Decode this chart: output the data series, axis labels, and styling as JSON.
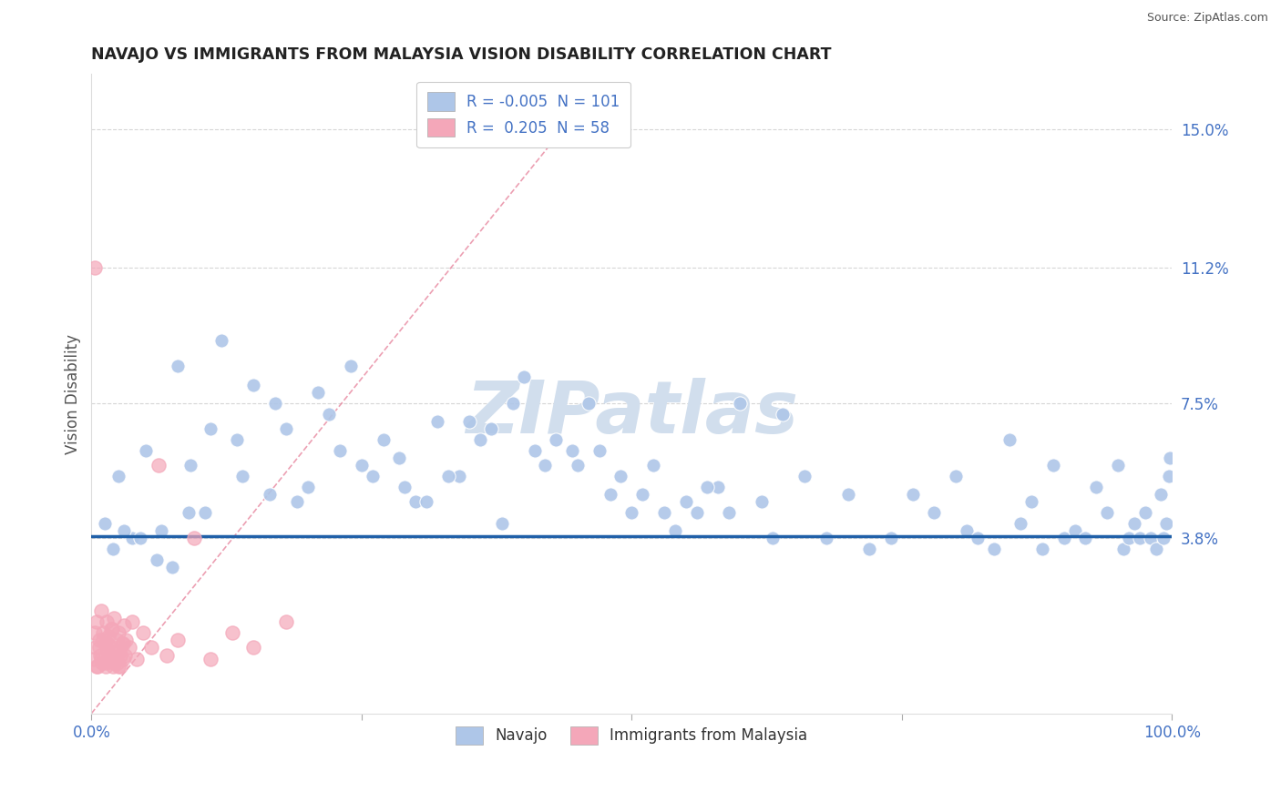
{
  "title": "NAVAJO VS IMMIGRANTS FROM MALAYSIA VISION DISABILITY CORRELATION CHART",
  "source": "Source: ZipAtlas.com",
  "ylabel": "Vision Disability",
  "xlim": [
    0,
    100
  ],
  "ylim": [
    -1.0,
    16.5
  ],
  "yticks": [
    3.8,
    7.5,
    11.2,
    15.0
  ],
  "navajo_R": "-0.005",
  "navajo_N": "101",
  "malaysia_R": "0.205",
  "malaysia_N": "58",
  "navajo_color": "#aec6e8",
  "malaysia_color": "#f4a7b9",
  "navajo_trend_color": "#2060a8",
  "malaysia_trend_color": "#e06080",
  "watermark": "ZIPatlas",
  "watermark_color_r": 0.82,
  "watermark_color_g": 0.87,
  "watermark_color_b": 0.93,
  "background_color": "#ffffff",
  "grid_color": "#cccccc",
  "axis_label_color": "#4472c4",
  "title_color": "#222222",
  "navajo_x": [
    1.2,
    2.5,
    3.8,
    5.0,
    6.5,
    8.0,
    9.2,
    10.5,
    12.0,
    13.5,
    15.0,
    16.5,
    18.0,
    20.0,
    22.0,
    24.0,
    26.0,
    28.5,
    30.0,
    32.0,
    34.0,
    36.0,
    38.0,
    40.0,
    42.0,
    44.5,
    46.0,
    48.0,
    50.0,
    52.0,
    54.0,
    56.0,
    58.0,
    60.0,
    62.0,
    64.0,
    66.0,
    68.0,
    70.0,
    72.0,
    74.0,
    76.0,
    78.0,
    80.0,
    81.0,
    82.0,
    83.5,
    85.0,
    86.0,
    87.0,
    88.0,
    89.0,
    90.0,
    91.0,
    92.0,
    93.0,
    94.0,
    95.0,
    95.5,
    96.0,
    96.5,
    97.0,
    97.5,
    98.0,
    98.5,
    99.0,
    99.2,
    99.5,
    99.7,
    99.8,
    2.0,
    3.0,
    4.5,
    6.0,
    7.5,
    9.0,
    11.0,
    14.0,
    17.0,
    19.0,
    21.0,
    23.0,
    25.0,
    27.0,
    29.0,
    31.0,
    33.0,
    35.0,
    37.0,
    39.0,
    41.0,
    43.0,
    45.0,
    47.0,
    49.0,
    51.0,
    53.0,
    55.0,
    57.0,
    59.0,
    63.0
  ],
  "navajo_y": [
    4.2,
    5.5,
    3.8,
    6.2,
    4.0,
    8.5,
    5.8,
    4.5,
    9.2,
    6.5,
    8.0,
    5.0,
    6.8,
    5.2,
    7.2,
    8.5,
    5.5,
    6.0,
    4.8,
    7.0,
    5.5,
    6.5,
    4.2,
    8.2,
    5.8,
    6.2,
    7.5,
    5.0,
    4.5,
    5.8,
    4.0,
    4.5,
    5.2,
    7.5,
    4.8,
    7.2,
    5.5,
    3.8,
    5.0,
    3.5,
    3.8,
    5.0,
    4.5,
    5.5,
    4.0,
    3.8,
    3.5,
    6.5,
    4.2,
    4.8,
    3.5,
    5.8,
    3.8,
    4.0,
    3.8,
    5.2,
    4.5,
    5.8,
    3.5,
    3.8,
    4.2,
    3.8,
    4.5,
    3.8,
    3.5,
    5.0,
    3.8,
    4.2,
    5.5,
    6.0,
    3.5,
    4.0,
    3.8,
    3.2,
    3.0,
    4.5,
    6.8,
    5.5,
    7.5,
    4.8,
    7.8,
    6.2,
    5.8,
    6.5,
    5.2,
    4.8,
    5.5,
    7.0,
    6.8,
    7.5,
    6.2,
    6.5,
    5.8,
    6.2,
    5.5,
    5.0,
    4.5,
    4.8,
    5.2,
    4.5,
    3.8
  ],
  "malaysia_x": [
    0.2,
    0.3,
    0.4,
    0.5,
    0.6,
    0.7,
    0.8,
    0.9,
    1.0,
    1.1,
    1.2,
    1.3,
    1.4,
    1.5,
    1.6,
    1.7,
    1.8,
    1.9,
    2.0,
    2.1,
    2.2,
    2.3,
    2.4,
    2.5,
    2.6,
    2.7,
    2.8,
    2.9,
    3.0,
    3.1,
    3.2,
    3.5,
    3.8,
    4.2,
    4.8,
    5.5,
    6.2,
    7.0,
    8.0,
    9.5,
    11.0,
    13.0,
    15.0,
    18.0,
    0.3,
    0.5,
    0.7,
    0.9,
    1.1,
    1.3,
    1.5,
    1.7,
    1.9,
    2.1,
    2.3,
    2.5,
    2.7,
    2.9
  ],
  "malaysia_y": [
    0.5,
    1.2,
    0.8,
    1.5,
    0.3,
    1.0,
    0.6,
    1.8,
    0.4,
    1.2,
    0.9,
    0.3,
    1.5,
    0.7,
    1.1,
    0.5,
    1.3,
    0.8,
    0.3,
    1.6,
    0.5,
    1.0,
    0.4,
    1.2,
    0.7,
    0.3,
    0.9,
    0.5,
    1.4,
    0.6,
    1.0,
    0.8,
    1.5,
    0.5,
    1.2,
    0.8,
    5.8,
    0.6,
    1.0,
    3.8,
    0.5,
    1.2,
    0.8,
    1.5,
    11.2,
    0.3,
    0.8,
    0.5,
    1.0,
    0.4,
    0.9,
    0.6,
    1.3,
    0.4,
    0.7,
    0.3,
    0.6,
    0.9
  ],
  "navajo_trend_y": 3.85,
  "malaysia_trend_x0": 0,
  "malaysia_trend_y0": -1.0,
  "malaysia_trend_x1": 45,
  "malaysia_trend_y1": 15.5
}
